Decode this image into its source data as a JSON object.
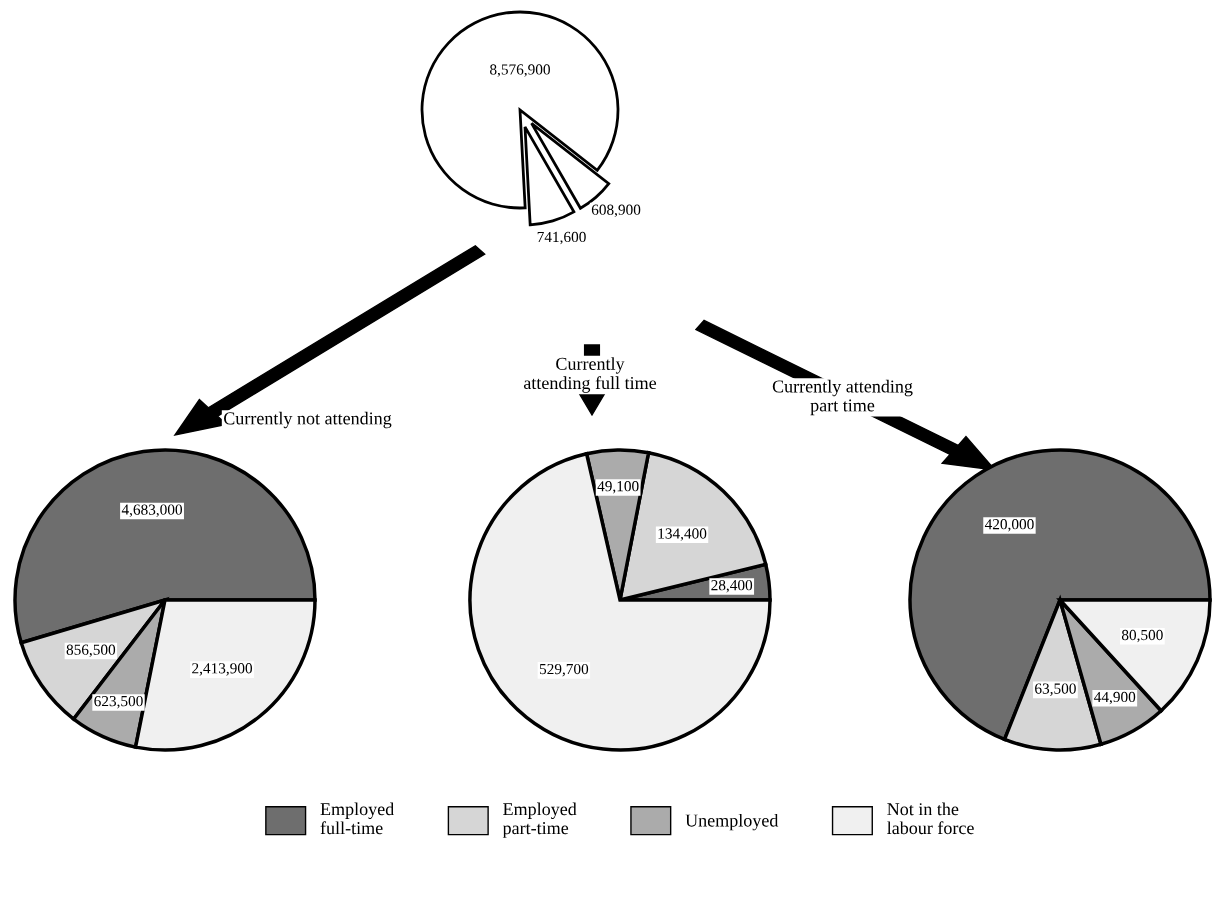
{
  "chart_data": [
    {
      "type": "pie",
      "categories": [
        null,
        null,
        null
      ],
      "values": [
        8576900,
        741600,
        608900
      ],
      "value_labels": [
        "8,576,900",
        "741,600",
        "608,900"
      ],
      "colors": [
        "#ffffff",
        "#ffffff",
        "#ffffff"
      ]
    },
    {
      "type": "pie",
      "title": "Currently not attending",
      "categories": [
        "Employed\nfull-time",
        "Employed\npart-time",
        "Unemployed",
        "Not in the\nlabour force"
      ],
      "values": [
        4683000,
        856500,
        623500,
        2413900
      ],
      "value_labels": [
        "4,683,000",
        "856,500",
        "623,500",
        "2,413,900"
      ],
      "colors": [
        "#6e6e6e",
        "#d6d6d6",
        "#ababab",
        "#f0f0f0"
      ],
      "legend": "bottom"
    },
    {
      "type": "pie",
      "title": "Currently\nattending full time",
      "categories": [
        null,
        null,
        null,
        null
      ],
      "values": [
        28400,
        134400,
        49100,
        529700
      ],
      "value_labels": [
        "28,400",
        "134,400",
        "49,100",
        "529,700"
      ],
      "colors": [
        "#6e6e6e",
        "#d6d6d6",
        "#ababab",
        "#f0f0f0"
      ]
    },
    {
      "type": "pie",
      "title": "Currently attending\npart time",
      "categories": [
        null,
        null,
        null,
        null
      ],
      "values": [
        420000,
        63500,
        44900,
        80500
      ],
      "value_labels": [
        "420,000",
        "63,500",
        "44,900",
        "80,500"
      ],
      "colors": [
        "#6e6e6e",
        "#d6d6d6",
        "#ababab",
        "#f0f0f0"
      ]
    }
  ]
}
